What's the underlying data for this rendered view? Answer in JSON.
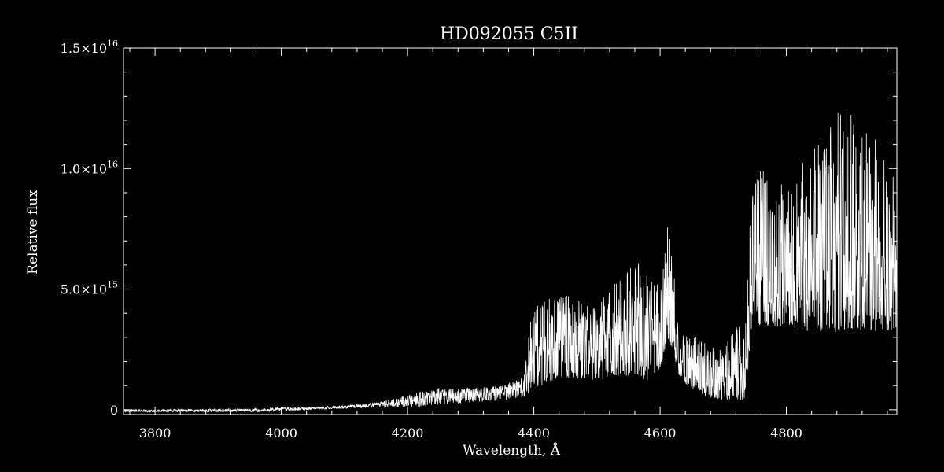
{
  "chart_data": {
    "type": "line",
    "title": "HD092055   C5II",
    "xlabel": "Wavelength, Å",
    "ylabel": "Relative flux",
    "xlim": [
      3750,
      4975
    ],
    "ylim": [
      -200000000000000.0,
      1.5e+16
    ],
    "grid": false,
    "legend": "none",
    "colors": {
      "background": "#000000",
      "foreground": "#ffffff"
    },
    "x_ticks": [
      {
        "value": 3800,
        "label": "3800"
      },
      {
        "value": 4000,
        "label": "4000"
      },
      {
        "value": 4200,
        "label": "4200"
      },
      {
        "value": 4400,
        "label": "4400"
      },
      {
        "value": 4600,
        "label": "4600"
      },
      {
        "value": 4800,
        "label": "4800"
      }
    ],
    "y_ticks": [
      {
        "value": 0,
        "label": "0",
        "exp": ""
      },
      {
        "value": 5000000000000000.0,
        "label": "5.0×10",
        "exp": "15"
      },
      {
        "value": 1e+16,
        "label": "1.0×10",
        "exp": "16"
      },
      {
        "value": 1.5e+16,
        "label": "1.5×10",
        "exp": "16"
      }
    ],
    "series": [
      {
        "x": [
          3750,
          3800,
          3850,
          3900,
          3950,
          4000,
          4050,
          4100,
          4150,
          4200,
          4225,
          4250,
          4300,
          4350,
          4385,
          4395,
          4420,
          4450,
          4480,
          4500,
          4530,
          4560,
          4580,
          4600,
          4612,
          4620,
          4630,
          4650,
          4680,
          4700,
          4720,
          4735,
          4745,
          4760,
          4800,
          4850,
          4880,
          4900,
          4930,
          4960,
          4975
        ],
        "envelope_low": [
          -100000000000000.0,
          -100000000000000.0,
          -100000000000000.0,
          -100000000000000.0,
          -100000000000000.0,
          -50000000000000.0,
          0,
          50000000000000.0,
          100000000000000.0,
          100000000000000.0,
          100000000000000.0,
          200000000000000.0,
          300000000000000.0,
          400000000000000.0,
          500000000000000.0,
          800000000000000.0,
          1100000000000000.0,
          1300000000000000.0,
          1300000000000000.0,
          1200000000000000.0,
          1400000000000000.0,
          1400000000000000.0,
          1200000000000000.0,
          1700000000000000.0,
          3000000000000000.0,
          2500000000000000.0,
          1400000000000000.0,
          800000000000000.0,
          500000000000000.0,
          400000000000000.0,
          400000000000000.0,
          400000000000000.0,
          3500000000000000.0,
          3500000000000000.0,
          3400000000000000.0,
          3200000000000000.0,
          3200000000000000.0,
          3400000000000000.0,
          3200000000000000.0,
          3300000000000000.0,
          3300000000000000.0
        ],
        "envelope_high": [
          10000000000000.0,
          20000000000000.0,
          20000000000000.0,
          40000000000000.0,
          50000000000000.0,
          100000000000000.0,
          120000000000000.0,
          180000000000000.0,
          300000000000000.0,
          600000000000000.0,
          800000000000000.0,
          900000000000000.0,
          900000000000000.0,
          1000000000000000.0,
          1500000000000000.0,
          4000000000000000.0,
          4700000000000000.0,
          4800000000000000.0,
          4500000000000000.0,
          4400000000000000.0,
          5300000000000000.0,
          6200000000000000.0,
          6000000000000000.0,
          5000000000000000.0,
          7700000000000000.0,
          6500000000000000.0,
          3000000000000000.0,
          3200000000000000.0,
          2600000000000000.0,
          2500000000000000.0,
          3500000000000000.0,
          3700000000000000.0,
          9700000000000000.0,
          1e+16,
          9500000000000000.0,
          1.1e+16,
          1.25e+16,
          1.25e+16,
          1.2e+16,
          1e+16,
          9700000000000000.0
        ]
      }
    ]
  }
}
